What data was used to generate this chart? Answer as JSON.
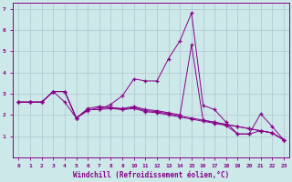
{
  "xlabel": "Windchill (Refroidissement éolien,°C)",
  "bg_color": "#cce8e8",
  "line_color": "#880088",
  "grid_color": "#aabbcc",
  "xlim": [
    -0.5,
    23.5
  ],
  "ylim": [
    0,
    7.3
  ],
  "xticks": [
    0,
    1,
    2,
    3,
    4,
    5,
    6,
    7,
    8,
    9,
    10,
    11,
    12,
    13,
    14,
    15,
    16,
    17,
    18,
    19,
    20,
    21,
    22,
    23
  ],
  "yticks": [
    1,
    2,
    3,
    4,
    5,
    6,
    7
  ],
  "line1_x": [
    0,
    1,
    2,
    3,
    4,
    5,
    6,
    7,
    8,
    9,
    10,
    11,
    12,
    13,
    14,
    15,
    16,
    17,
    18,
    19,
    20,
    21,
    22,
    23
  ],
  "line1_y": [
    2.6,
    2.6,
    2.6,
    3.1,
    3.1,
    1.85,
    2.25,
    2.25,
    2.5,
    2.9,
    3.7,
    3.6,
    3.6,
    4.65,
    5.5,
    6.8,
    2.45,
    2.25,
    1.65,
    1.1,
    1.1,
    2.05,
    1.45,
    0.82
  ],
  "line2_x": [
    0,
    1,
    2,
    3,
    4,
    5,
    6,
    7,
    8,
    9,
    10,
    11,
    12,
    13,
    14,
    15,
    16,
    17,
    18,
    19,
    20,
    21,
    22,
    23
  ],
  "line2_y": [
    2.6,
    2.6,
    2.6,
    3.1,
    3.1,
    1.85,
    2.2,
    2.35,
    2.35,
    2.3,
    2.4,
    2.25,
    2.2,
    2.1,
    2.0,
    5.3,
    1.75,
    1.65,
    1.55,
    1.45,
    1.35,
    1.25,
    1.15,
    0.82
  ],
  "line3_x": [
    0,
    1,
    2,
    3,
    4,
    5,
    6,
    7,
    8,
    9,
    10,
    11,
    12,
    13,
    14,
    15,
    16,
    17,
    18,
    19,
    20,
    21,
    22,
    23
  ],
  "line3_y": [
    2.6,
    2.6,
    2.6,
    3.1,
    2.6,
    1.85,
    2.3,
    2.4,
    2.35,
    2.25,
    2.35,
    2.2,
    2.15,
    2.05,
    1.95,
    1.85,
    1.75,
    1.65,
    1.55,
    1.45,
    1.35,
    1.25,
    1.15,
    0.82
  ],
  "line4_x": [
    0,
    1,
    2,
    3,
    4,
    5,
    6,
    7,
    8,
    9,
    10,
    11,
    12,
    13,
    14,
    15,
    16,
    17,
    18,
    19,
    20,
    21,
    22,
    23
  ],
  "line4_y": [
    2.6,
    2.6,
    2.6,
    3.1,
    3.1,
    1.85,
    2.25,
    2.25,
    2.3,
    2.25,
    2.3,
    2.15,
    2.1,
    2.0,
    1.9,
    1.8,
    1.7,
    1.6,
    1.5,
    1.1,
    1.1,
    1.25,
    1.15,
    0.82
  ]
}
